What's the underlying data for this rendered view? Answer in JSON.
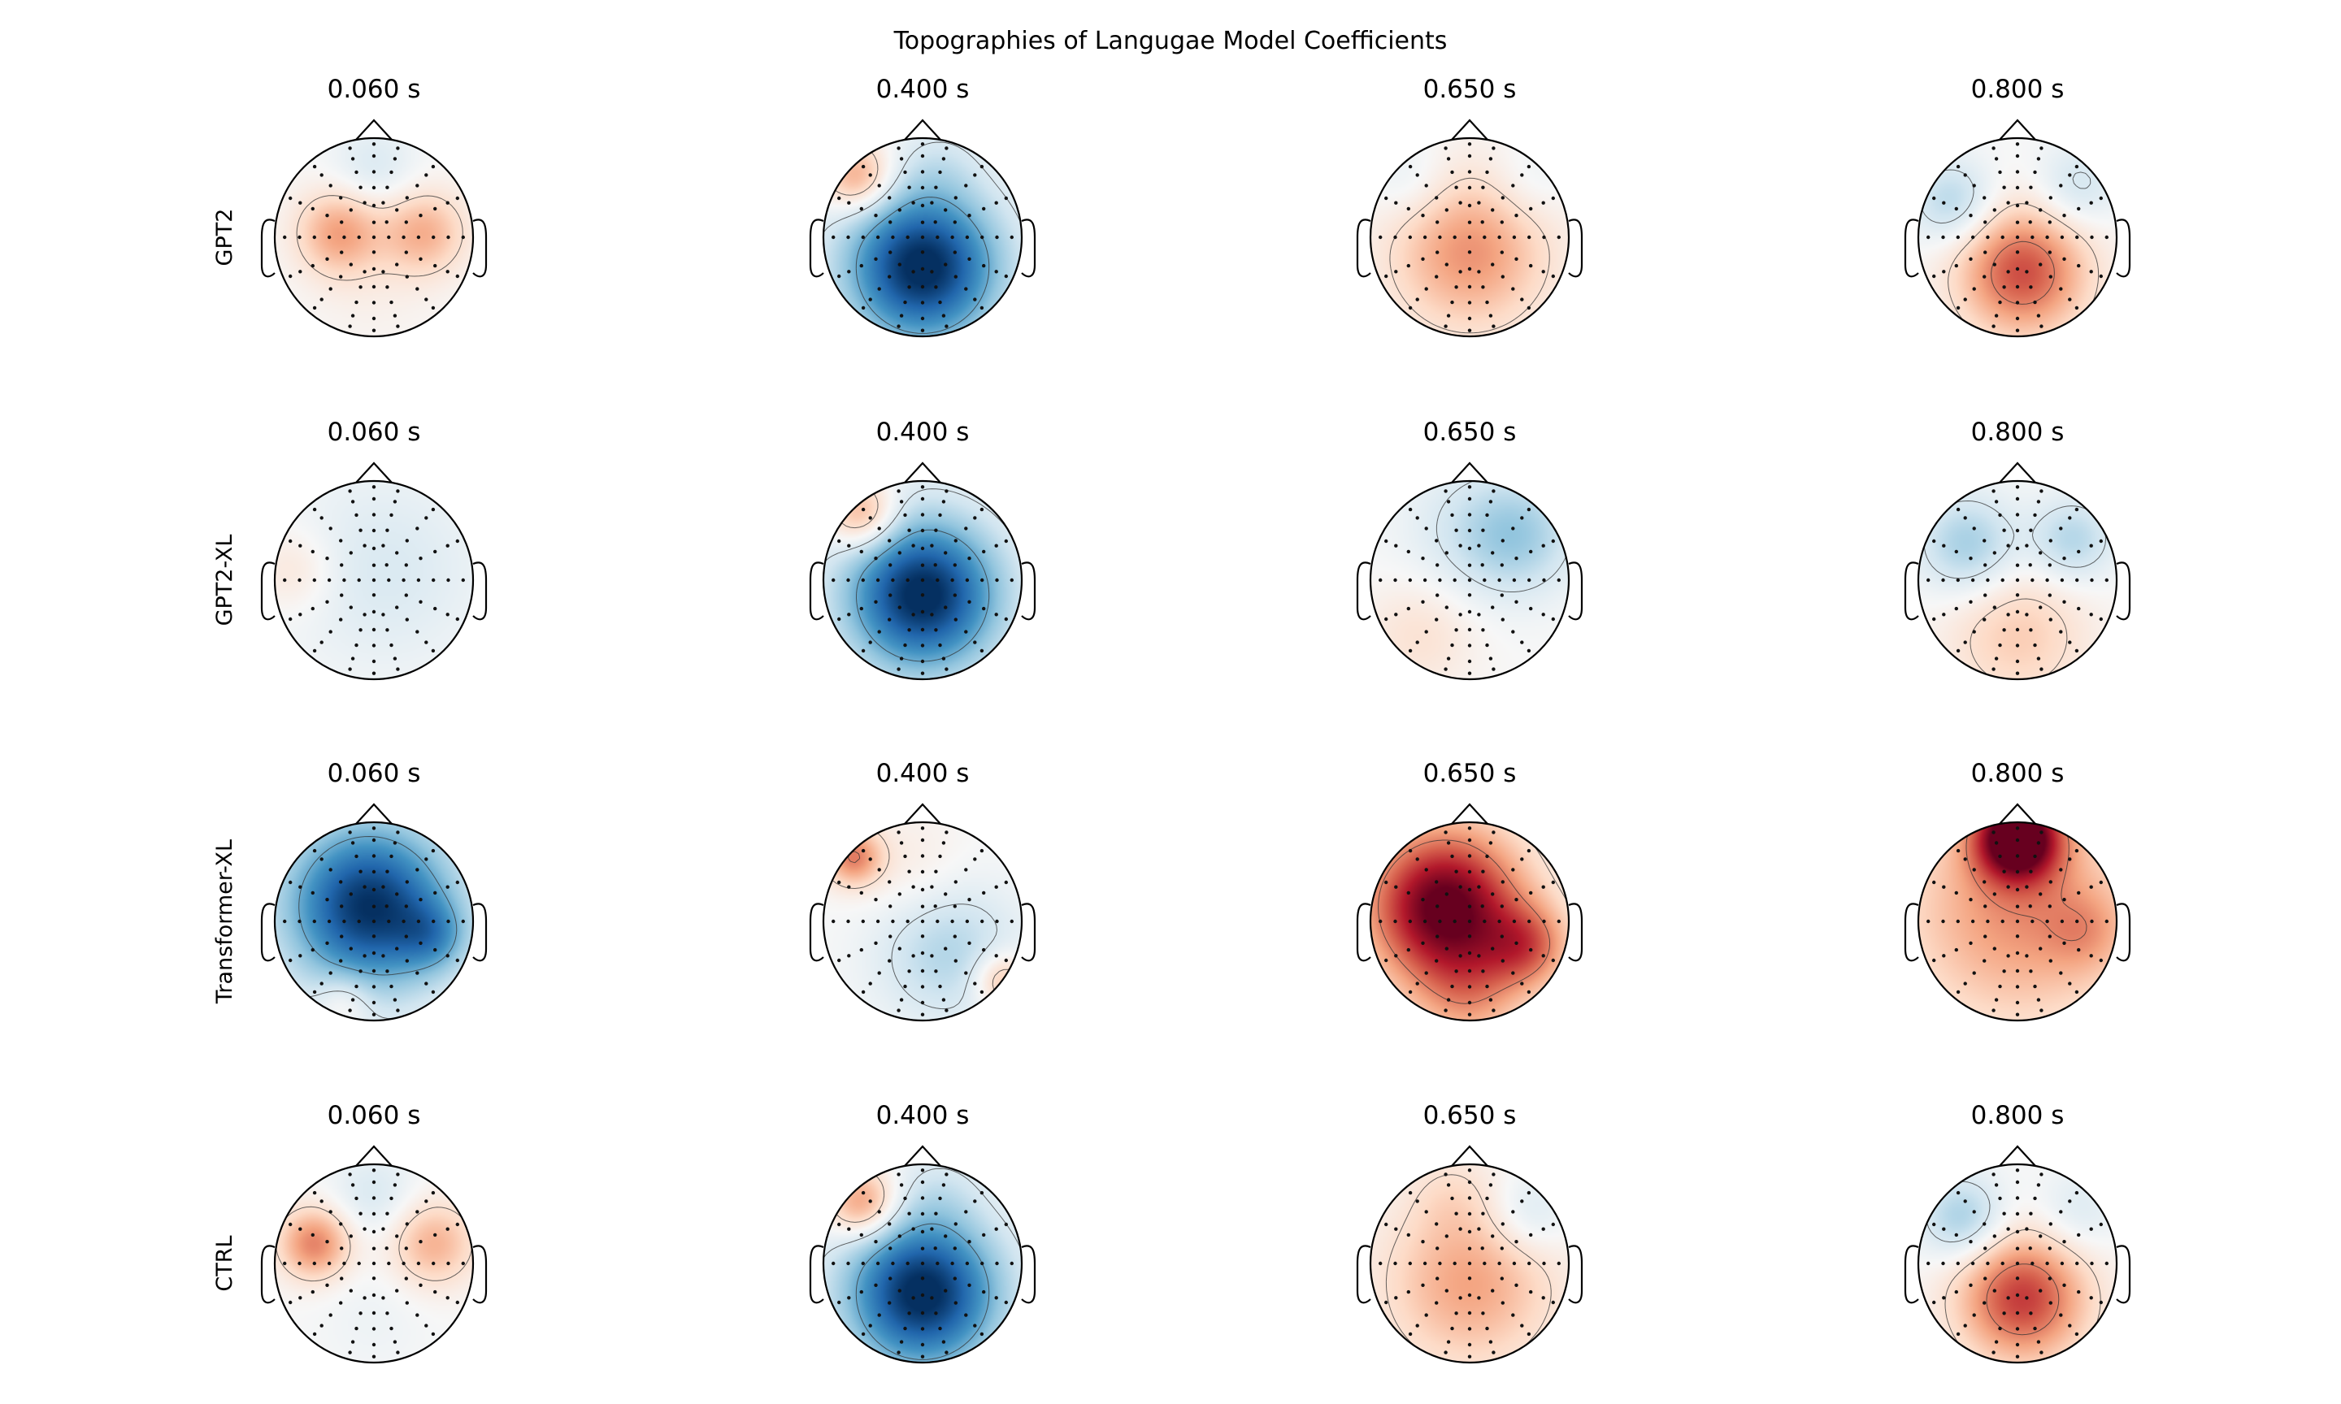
{
  "chart_data": {
    "type": "heatmap",
    "subtype": "scalp-topography-grid",
    "title": "Topographies of Langugae Model Coefficients",
    "colormap": "RdBu_r",
    "colors": {
      "negative": "#2166ac",
      "neutral": "#f7f7f7",
      "positive": "#b2182b",
      "outline": "#000000"
    },
    "times": [
      "0.060 s",
      "0.400 s",
      "0.650 s",
      "0.800 s"
    ],
    "rows": [
      {
        "label": "GPT2",
        "maps": [
          {
            "time": "0.060 s",
            "blobs": [
              [
                -0.35,
                0.05,
                0.3,
                0.4
              ],
              [
                0.5,
                0.05,
                0.3,
                0.35
              ],
              [
                0,
                -0.5,
                0.45,
                0.05
              ],
              [
                0,
                0.7,
                0.3,
                -0.15
              ]
            ]
          },
          {
            "time": "0.400 s",
            "blobs": [
              [
                0,
                -0.3,
                0.55,
                -1.05
              ],
              [
                -0.65,
                0.6,
                0.25,
                0.45
              ],
              [
                0.2,
                0.75,
                0.3,
                -0.1
              ]
            ]
          },
          {
            "time": "0.650 s",
            "blobs": [
              [
                0,
                -0.15,
                0.55,
                0.45
              ],
              [
                -0.6,
                0.55,
                0.3,
                -0.12
              ],
              [
                0.6,
                0.55,
                0.3,
                -0.1
              ]
            ]
          },
          {
            "time": "0.800 s",
            "blobs": [
              [
                0.05,
                -0.35,
                0.45,
                0.65
              ],
              [
                -0.65,
                0.35,
                0.3,
                -0.3
              ],
              [
                0.6,
                0.5,
                0.3,
                -0.2
              ]
            ]
          }
        ]
      },
      {
        "label": "GPT2-XL",
        "maps": [
          {
            "time": "0.060 s",
            "blobs": [
              [
                0.1,
                0.1,
                0.7,
                -0.15
              ],
              [
                -0.8,
                0.1,
                0.3,
                0.15
              ]
            ]
          },
          {
            "time": "0.400 s",
            "blobs": [
              [
                0,
                -0.15,
                0.55,
                -1.05
              ],
              [
                -0.6,
                0.65,
                0.25,
                0.45
              ]
            ]
          },
          {
            "time": "0.650 s",
            "blobs": [
              [
                0.5,
                0.45,
                0.4,
                -0.3
              ],
              [
                -0.5,
                -0.55,
                0.4,
                0.15
              ],
              [
                0,
                0.5,
                0.5,
                -0.15
              ]
            ]
          },
          {
            "time": "0.800 s",
            "blobs": [
              [
                -0.5,
                0.35,
                0.35,
                -0.35
              ],
              [
                0.55,
                0.4,
                0.3,
                -0.3
              ],
              [
                0,
                -0.55,
                0.5,
                0.25
              ]
            ]
          }
        ]
      },
      {
        "label": "Transformer-XL",
        "maps": [
          {
            "time": "0.060 s",
            "blobs": [
              [
                -0.05,
                0.15,
                0.6,
                -1.0
              ],
              [
                0.6,
                -0.15,
                0.25,
                -0.3
              ],
              [
                -0.3,
                -0.8,
                0.2,
                0.2
              ]
            ]
          },
          {
            "time": "0.400 s",
            "blobs": [
              [
                -0.7,
                0.65,
                0.2,
                0.5
              ],
              [
                0.25,
                -0.3,
                0.5,
                -0.3
              ],
              [
                0.8,
                -0.6,
                0.2,
                0.35
              ],
              [
                -0.1,
                0.5,
                0.4,
                0.1
              ]
            ]
          },
          {
            "time": "0.650 s",
            "blobs": [
              [
                -0.25,
                0.15,
                0.55,
                1.05
              ],
              [
                0.6,
                -0.25,
                0.3,
                0.45
              ],
              [
                0,
                -0.75,
                0.4,
                0.3
              ]
            ]
          },
          {
            "time": "0.800 s",
            "blobs": [
              [
                0,
                0.85,
                0.3,
                1.1
              ],
              [
                0,
                0.1,
                0.8,
                0.45
              ],
              [
                0.7,
                -0.1,
                0.3,
                0.2
              ]
            ]
          }
        ]
      },
      {
        "label": "CTRL",
        "maps": [
          {
            "time": "0.060 s",
            "blobs": [
              [
                -0.6,
                0.2,
                0.25,
                0.5
              ],
              [
                0.6,
                0.2,
                0.3,
                0.35
              ],
              [
                0,
                0.7,
                0.3,
                -0.15
              ],
              [
                0,
                -0.55,
                0.4,
                -0.05
              ]
            ]
          },
          {
            "time": "0.400 s",
            "blobs": [
              [
                0,
                -0.3,
                0.55,
                -1.05
              ],
              [
                -0.6,
                0.6,
                0.25,
                0.5
              ],
              [
                0.2,
                0.75,
                0.3,
                -0.1
              ]
            ]
          },
          {
            "time": "0.650 s",
            "blobs": [
              [
                0,
                -0.2,
                0.6,
                0.4
              ],
              [
                0.6,
                0.5,
                0.3,
                -0.2
              ],
              [
                -0.2,
                0.7,
                0.3,
                0.1
              ]
            ]
          },
          {
            "time": "0.800 s",
            "blobs": [
              [
                0.05,
                -0.35,
                0.45,
                0.7
              ],
              [
                -0.55,
                0.45,
                0.3,
                -0.35
              ],
              [
                0.6,
                0.5,
                0.3,
                -0.15
              ]
            ]
          }
        ]
      }
    ]
  }
}
